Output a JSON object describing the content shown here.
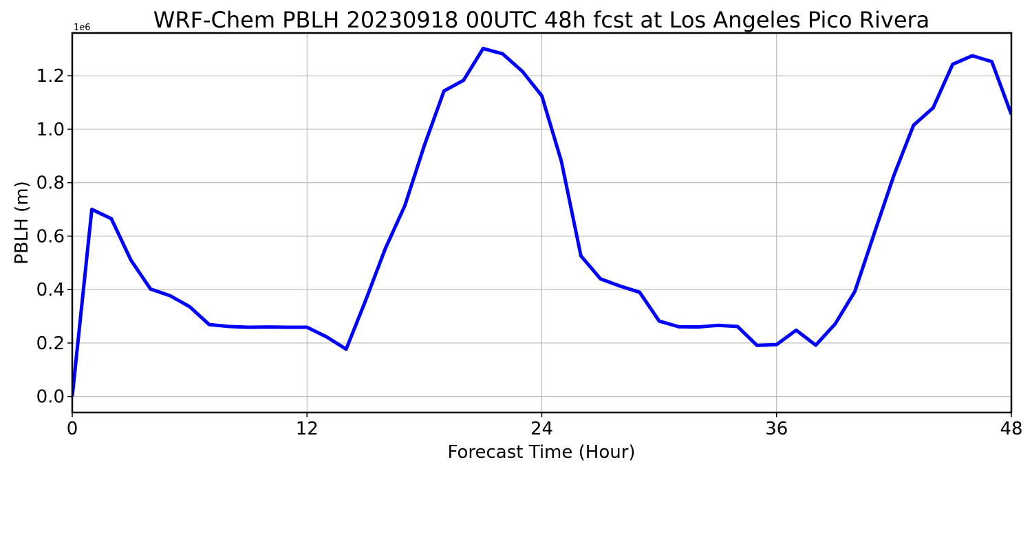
{
  "chart_data": {
    "type": "line",
    "title": "WRF-Chem PBLH  20230918 00UTC 48h fcst at Los Angeles Pico Rivera",
    "xlabel": "Forecast Time (Hour)",
    "ylabel": "PBLH  (m)",
    "y_offset_label": "1e6",
    "y_multiplier": 1000000,
    "xlim": [
      0,
      48
    ],
    "ylim": [
      -60000,
      1360000
    ],
    "x_ticks": [
      0,
      12,
      24,
      36,
      48
    ],
    "x_tick_labels": [
      "0",
      "12",
      "24",
      "36",
      "48"
    ],
    "y_ticks": [
      0,
      200000,
      400000,
      600000,
      800000,
      1000000,
      1200000
    ],
    "y_tick_labels": [
      "0.0",
      "0.2",
      "0.4",
      "0.6",
      "0.8",
      "1.0",
      "1.2"
    ],
    "grid": true,
    "series": [
      {
        "color": "#0000ff",
        "x": [
          0,
          1,
          2,
          3,
          4,
          5,
          6,
          7,
          8,
          9,
          10,
          11,
          12,
          13,
          14,
          15,
          16,
          17,
          18,
          19,
          20,
          21,
          22,
          23,
          24,
          25,
          26,
          27,
          28,
          29,
          30,
          31,
          32,
          33,
          34,
          35,
          36,
          37,
          38,
          39,
          40,
          41,
          42,
          43,
          44,
          45,
          46,
          47,
          48
        ],
        "values": [
          0,
          700000,
          665000,
          510000,
          402000,
          377000,
          336000,
          269000,
          262000,
          259000,
          260000,
          259000,
          259000,
          223000,
          177000,
          360000,
          553000,
          714000,
          940000,
          1143000,
          1183000,
          1302000,
          1282000,
          1217000,
          1125000,
          880000,
          526000,
          440000,
          413000,
          390000,
          282000,
          261000,
          260000,
          266000,
          262000,
          191000,
          194000,
          248000,
          192000,
          272000,
          393000,
          612000,
          828000,
          1015000,
          1080000,
          1243000,
          1275000,
          1253000,
          1055000
        ]
      }
    ]
  }
}
